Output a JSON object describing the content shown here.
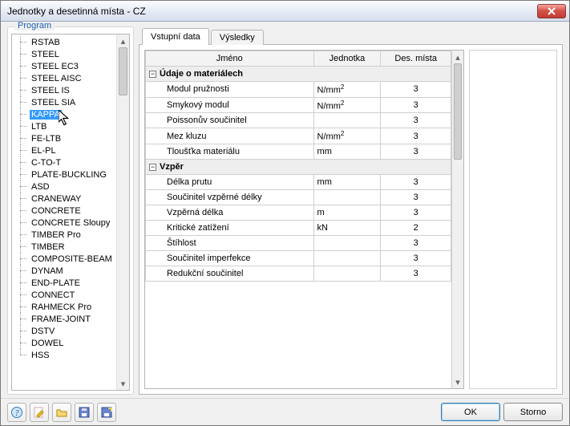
{
  "window": {
    "title": "Jednotky a desetinná místa - CZ"
  },
  "sidebar": {
    "title": "Program",
    "items": [
      "RSTAB",
      "STEEL",
      "STEEL EC3",
      "STEEL AISC",
      "STEEL IS",
      "STEEL SIA",
      "KAPPA",
      "LTB",
      "FE-LTB",
      "EL-PL",
      "C-TO-T",
      "PLATE-BUCKLING",
      "ASD",
      "CRANEWAY",
      "CONCRETE",
      "CONCRETE Sloupy",
      "TIMBER Pro",
      "TIMBER",
      "COMPOSITE-BEAM",
      "DYNAM",
      "END-PLATE",
      "CONNECT",
      "RAHMECK Pro",
      "FRAME-JOINT",
      "DSTV",
      "DOWEL",
      "HSS"
    ],
    "selected_index": 6
  },
  "tabs": {
    "items": [
      "Vstupní data",
      "Výsledky"
    ],
    "active_index": 0
  },
  "table": {
    "columns": {
      "name": "Jméno",
      "unit": "Jednotka",
      "dec": "Des. místa"
    },
    "groups": [
      {
        "title": "Údaje o materiálech",
        "rows": [
          {
            "name": "Modul pružnosti",
            "unit": "N/mm²",
            "dec": "3"
          },
          {
            "name": "Smykový modul",
            "unit": "N/mm²",
            "dec": "3"
          },
          {
            "name": "Poissonův součinitel",
            "unit": "",
            "dec": "3"
          },
          {
            "name": "Mez kluzu",
            "unit": "N/mm²",
            "dec": "3"
          },
          {
            "name": "Tloušťka materiálu",
            "unit": "mm",
            "dec": "3"
          }
        ]
      },
      {
        "title": "Vzpěr",
        "rows": [
          {
            "name": "Délka prutu",
            "unit": "mm",
            "dec": "3"
          },
          {
            "name": "Součinitel vzpěrné délky",
            "unit": "",
            "dec": "3"
          },
          {
            "name": "Vzpěrná délka",
            "unit": "m",
            "dec": "3"
          },
          {
            "name": "Kritické zatížení",
            "unit": "kN",
            "dec": "2"
          },
          {
            "name": "Štíhlost",
            "unit": "",
            "dec": "3"
          },
          {
            "name": "Součinitel imperfekce",
            "unit": "",
            "dec": "3"
          },
          {
            "name": "Redukční součinitel",
            "unit": "",
            "dec": "3"
          }
        ]
      }
    ]
  },
  "footer": {
    "ok": "OK",
    "cancel": "Storno"
  },
  "icons": [
    "help",
    "edit",
    "open",
    "save",
    "saveas"
  ],
  "colors": {
    "selection": "#3399ff",
    "group_row": "#eeeeee"
  }
}
